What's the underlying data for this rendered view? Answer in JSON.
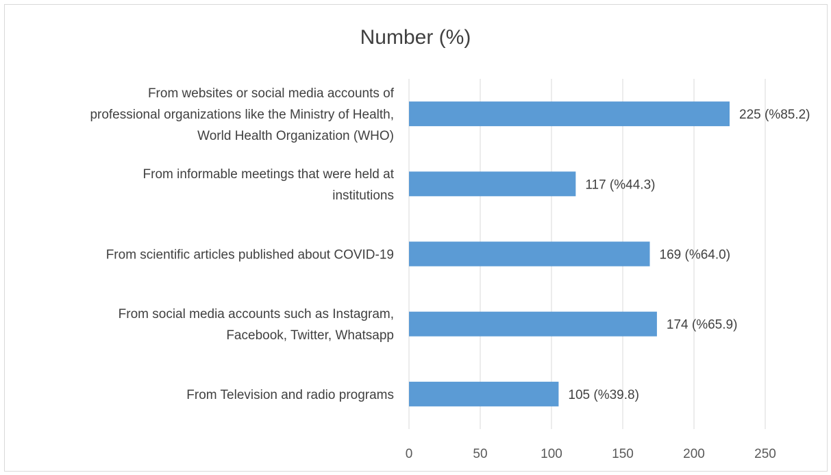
{
  "chart_data": {
    "type": "bar",
    "orientation": "horizontal",
    "title": "Number (%)",
    "xlabel": "",
    "ylabel": "",
    "xlim": [
      0,
      250
    ],
    "xticks": [
      0,
      50,
      100,
      150,
      200,
      250
    ],
    "grid": true,
    "bar_color": "#5b9bd5",
    "categories": [
      [
        "From websites or social media accounts of",
        "professional organizations like the Ministry of Health,",
        "World Health Organization (WHO)"
      ],
      [
        "From informable meetings that were held at",
        "institutions"
      ],
      [
        "From scientific articles published about COVID-19"
      ],
      [
        "From social media accounts such as Instagram,",
        "Facebook, Twitter, Whatsapp"
      ],
      [
        "From Television and radio programs"
      ]
    ],
    "values": [
      225,
      117,
      169,
      174,
      105
    ],
    "data_labels": [
      "225 (%85.2)",
      "117 (%44.3)",
      "169 (%64.0)",
      "174 (%65.9)",
      "105 (%39.8)"
    ]
  }
}
